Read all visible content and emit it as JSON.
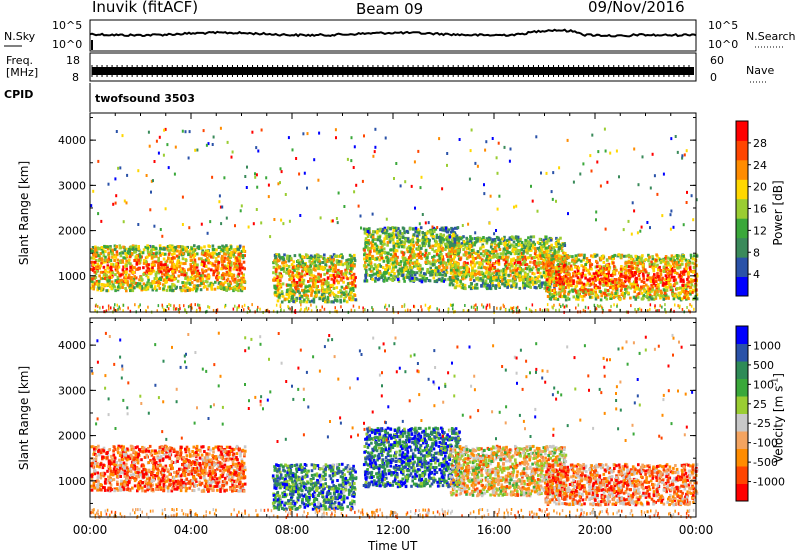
{
  "header": {
    "station": "Inuvik (fitACF)",
    "beam": "Beam 09",
    "date": "09/Nov/2016"
  },
  "status_panels": {
    "nsky_label": "N.Sky",
    "nsky_ticks": [
      "10^5",
      "10^0"
    ],
    "nsearch_label": "N.Search",
    "nsearch_ticks": [
      "10^5",
      "10^0"
    ],
    "freq_label": "Freq.",
    "freq_unit": "[MHz]",
    "freq_ticks": [
      "18",
      "8"
    ],
    "nave_label": "Nave",
    "nave_ticks": [
      "60",
      "0"
    ],
    "cpid_label": "CPID",
    "cpid_value": "twofsound 3503"
  },
  "colors": {
    "power": [
      "#0000ff",
      "#2a52a8",
      "#3a8a5a",
      "#3aa83a",
      "#9acd32",
      "#ffd700",
      "#ff8c00",
      "#ff4500",
      "#ff0000"
    ],
    "velocity": [
      "#ff0000",
      "#ff4500",
      "#ff8c00",
      "#f4a460",
      "#c8c8c8",
      "#9acd32",
      "#3aa83a",
      "#2e8b57",
      "#2a52a8",
      "#0000ff"
    ]
  },
  "chart_data": [
    {
      "type": "heatmap",
      "name": "power",
      "ylabel": "Slant Range [km]",
      "yticks": [
        1000,
        2000,
        3000,
        4000
      ],
      "ylim": [
        200,
        4600
      ],
      "xlim": [
        0,
        24
      ],
      "colorbar_label": "Power [dB]",
      "colorbar_ticks": [
        "28",
        "24",
        "20",
        "16",
        "12",
        "8",
        "4"
      ],
      "colorbar_range": [
        0,
        32
      ],
      "bands": [
        {
          "x0": 0.0,
          "x1": 6.1,
          "y0": 700,
          "y1": 1700,
          "level": 0.8
        },
        {
          "x0": 7.2,
          "x1": 10.5,
          "y0": 450,
          "y1": 1500,
          "level": 0.75
        },
        {
          "x0": 10.8,
          "x1": 14.6,
          "y0": 900,
          "y1": 2100,
          "level": 0.65
        },
        {
          "x0": 14.2,
          "x1": 18.8,
          "y0": 750,
          "y1": 1900,
          "level": 0.7
        },
        {
          "x0": 18.0,
          "x1": 24.0,
          "y0": 500,
          "y1": 1500,
          "level": 0.85
        }
      ]
    },
    {
      "type": "heatmap",
      "name": "velocity",
      "ylabel": "Slant Range [km]",
      "xlabel": "Time UT",
      "yticks": [
        1000,
        2000,
        3000,
        4000
      ],
      "ylim": [
        200,
        4600
      ],
      "xlim": [
        0,
        24
      ],
      "xticks": [
        "00:00",
        "04:00",
        "08:00",
        "12:00",
        "16:00",
        "20:00",
        "00:00"
      ],
      "colorbar_label": "Velocity [m s",
      "colorbar_label_sup": "-1",
      "colorbar_label_end": "]",
      "colorbar_ticks": [
        "1000",
        "500",
        "100",
        "25",
        "-25",
        "-100",
        "-500",
        "-1000"
      ],
      "bands": [
        {
          "x0": 0.0,
          "x1": 6.1,
          "y0": 800,
          "y1": 1800,
          "level": 0.22
        },
        {
          "x0": 7.2,
          "x1": 10.5,
          "y0": 400,
          "y1": 1400,
          "level": 0.72
        },
        {
          "x0": 10.8,
          "x1": 14.6,
          "y0": 900,
          "y1": 2200,
          "level": 0.8
        },
        {
          "x0": 14.2,
          "x1": 18.8,
          "y0": 700,
          "y1": 1800,
          "level": 0.4
        },
        {
          "x0": 18.0,
          "x1": 24.0,
          "y0": 500,
          "y1": 1400,
          "level": 0.25
        }
      ]
    }
  ]
}
